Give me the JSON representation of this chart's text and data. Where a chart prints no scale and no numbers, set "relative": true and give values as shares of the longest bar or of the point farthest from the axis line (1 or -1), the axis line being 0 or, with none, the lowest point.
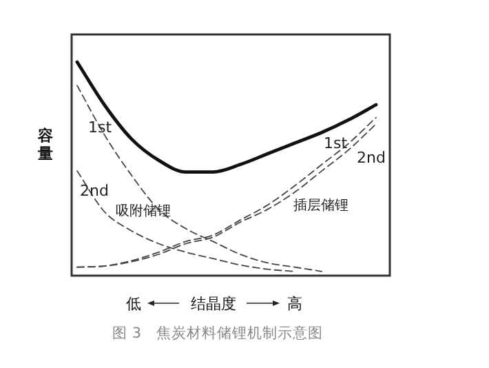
{
  "chart_data": {
    "type": "line",
    "relative": true,
    "ylabel": "容量",
    "xlabel": "结晶度",
    "categories": [
      null,
      null,
      null,
      null,
      null,
      null,
      null,
      null,
      null,
      null,
      null,
      null
    ],
    "series": [
      {
        "color": "#111111",
        "line_style": "solid",
        "values": [
          1.0,
          0.8,
          0.64,
          0.54,
          0.485,
          0.485,
          0.52,
          0.57,
          0.62,
          0.67,
          0.73,
          0.8
        ]
      },
      {
        "name": "1st",
        "color": "#444444",
        "line_style": "dashed",
        "values": [
          0.89,
          0.66,
          0.47,
          0.31,
          0.22,
          0.16,
          0.1,
          0.06,
          0.04,
          0.02,
          null,
          null
        ]
      },
      {
        "name": "2nd",
        "color": "#444444",
        "line_style": "dashed",
        "values": [
          0.49,
          0.3,
          0.21,
          0.15,
          0.11,
          0.08,
          0.05,
          0.03,
          0.02,
          null,
          null,
          null
        ]
      },
      {
        "name": "1st",
        "color": "#444444",
        "line_style": "dashed",
        "values": [
          0.04,
          0.045,
          0.07,
          0.11,
          0.16,
          0.19,
          0.26,
          0.33,
          0.42,
          0.52,
          0.62,
          0.74
        ]
      },
      {
        "name": "2nd",
        "color": "#444444",
        "line_style": "dashed",
        "values": [
          0.04,
          0.045,
          0.065,
          0.1,
          0.15,
          0.18,
          0.25,
          0.31,
          0.39,
          0.49,
          0.59,
          0.71
        ]
      }
    ],
    "annotations": [
      "吸附储锂",
      "插层储锂",
      "低",
      "高",
      "图 3　焦炭材料储锂机制示意图"
    ],
    "marker": "none"
  }
}
